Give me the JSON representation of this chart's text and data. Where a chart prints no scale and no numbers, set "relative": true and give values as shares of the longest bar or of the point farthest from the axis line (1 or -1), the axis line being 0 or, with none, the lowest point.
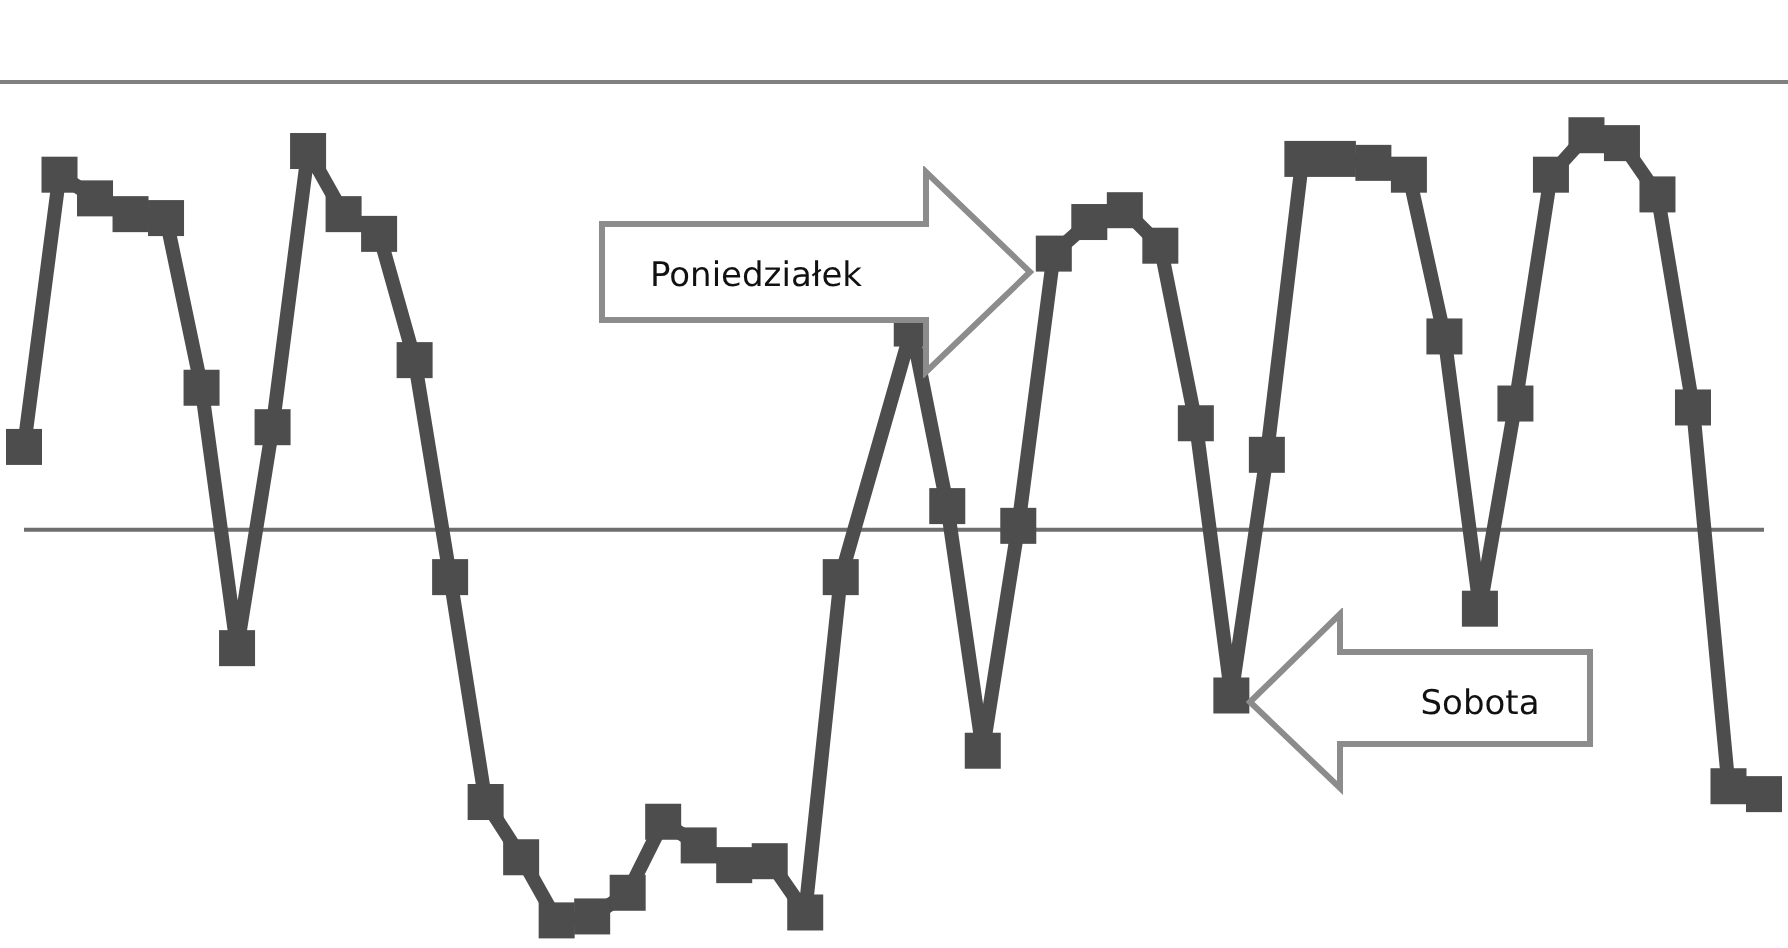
{
  "chart_data": {
    "type": "line",
    "relative": true,
    "marker": "square",
    "line_style": "solid",
    "grid": false,
    "categories": [
      null,
      null,
      null,
      null,
      null,
      null,
      null,
      null,
      null,
      null,
      null,
      null,
      null,
      null,
      null,
      null,
      null,
      null,
      null,
      null,
      null,
      null,
      null,
      null,
      null,
      null,
      null,
      null,
      null,
      null,
      null,
      null,
      null,
      null,
      null,
      null,
      null,
      null,
      null,
      null,
      null,
      null,
      null,
      null,
      null,
      null,
      null,
      null,
      null,
      null
    ],
    "series": [
      {
        "color": "#4d4d4d",
        "values": [
          0.21,
          0.9,
          0.84,
          0.8,
          0.79,
          0.36,
          -0.3,
          0.26,
          0.96,
          0.8,
          0.75,
          0.43,
          -0.12,
          -0.69,
          -0.83,
          -0.99,
          -0.98,
          -0.92,
          -0.74,
          -0.8,
          -0.85,
          -0.84,
          -0.97,
          -0.12,
          null,
          0.51,
          0.06,
          -0.56,
          0.01,
          0.7,
          0.78,
          0.81,
          0.72,
          0.27,
          -0.42,
          0.19,
          0.94,
          0.94,
          0.93,
          0.9,
          0.49,
          -0.2,
          0.32,
          0.9,
          1,
          0.98,
          0.85,
          0.31,
          -0.65,
          -0.67
        ]
      }
    ],
    "annotations": [
      "Poniedziałek",
      "Sobota"
    ]
  }
}
